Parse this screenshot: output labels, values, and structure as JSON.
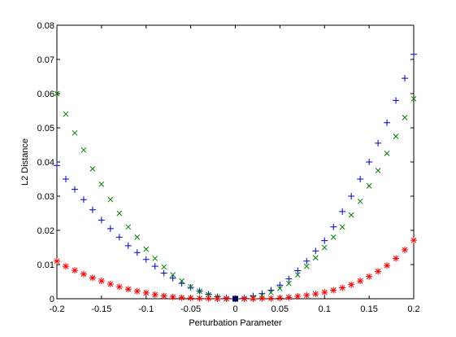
{
  "chart_data": {
    "type": "scatter",
    "xlabel": "Perturbation Parameter",
    "ylabel": "L2 Distance",
    "x": [
      -0.2,
      -0.19,
      -0.18,
      -0.17,
      -0.16,
      -0.15,
      -0.14,
      -0.13,
      -0.12,
      -0.11,
      -0.1,
      -0.09,
      -0.08,
      -0.07,
      -0.06,
      -0.05,
      -0.04,
      -0.03,
      -0.02,
      -0.01,
      0,
      0.01,
      0.02,
      0.03,
      0.04,
      0.05,
      0.06,
      0.07,
      0.08,
      0.09,
      0.1,
      0.11,
      0.12,
      0.13,
      0.14,
      0.15,
      0.16,
      0.17,
      0.18,
      0.19,
      0.2
    ],
    "series": [
      {
        "color": "#0000cc",
        "marker": "plus",
        "values": [
          0.039,
          0.035,
          0.032,
          0.029,
          0.026,
          0.023,
          0.0205,
          0.018,
          0.0155,
          0.0135,
          0.0115,
          0.0095,
          0.0075,
          0.006,
          0.0045,
          0.0033,
          0.0022,
          0.0013,
          0.0006,
          0.0002,
          0,
          0.0002,
          0.0008,
          0.0015,
          0.0025,
          0.004,
          0.0058,
          0.0082,
          0.011,
          0.014,
          0.017,
          0.021,
          0.0255,
          0.03,
          0.035,
          0.04,
          0.0455,
          0.0515,
          0.058,
          0.0645,
          0.0715
        ]
      },
      {
        "color": "#008000",
        "marker": "cross",
        "values": [
          0.06,
          0.054,
          0.0485,
          0.0435,
          0.038,
          0.0335,
          0.029,
          0.025,
          0.021,
          0.018,
          0.0145,
          0.0118,
          0.0093,
          0.007,
          0.0052,
          0.0035,
          0.0022,
          0.0012,
          0.0005,
          0.0001,
          0,
          0.0001,
          0.0004,
          0.001,
          0.0018,
          0.003,
          0.0045,
          0.007,
          0.0095,
          0.012,
          0.015,
          0.018,
          0.021,
          0.0245,
          0.0285,
          0.033,
          0.0375,
          0.0425,
          0.0475,
          0.053,
          0.0585
        ]
      },
      {
        "color": "#ff0000",
        "marker": "star",
        "values": [
          0.011,
          0.0095,
          0.0083,
          0.0072,
          0.0061,
          0.0052,
          0.0043,
          0.0035,
          0.0028,
          0.0022,
          0.0017,
          0.0012,
          0.0008,
          0.0005,
          0.0003,
          0.0002,
          0.0001,
          0.0001,
          0,
          0,
          0,
          0,
          0,
          0.0001,
          0.0001,
          0.0002,
          0.0004,
          0.0007,
          0.001,
          0.0014,
          0.0019,
          0.0025,
          0.0032,
          0.0041,
          0.0052,
          0.0065,
          0.008,
          0.0097,
          0.0118,
          0.0143,
          0.0171
        ]
      },
      {
        "color": "#000066",
        "marker": "square",
        "x": [
          0
        ],
        "values": [
          0
        ]
      }
    ],
    "xlim": [
      -0.2,
      0.2
    ],
    "xticks": [
      -0.2,
      -0.15,
      -0.1,
      -0.05,
      0,
      0.05,
      0.1,
      0.15,
      0.2
    ],
    "ylim": [
      0,
      0.08
    ],
    "yticks": [
      0,
      0.01,
      0.02,
      0.03,
      0.04,
      0.05,
      0.06,
      0.07,
      0.08
    ]
  }
}
